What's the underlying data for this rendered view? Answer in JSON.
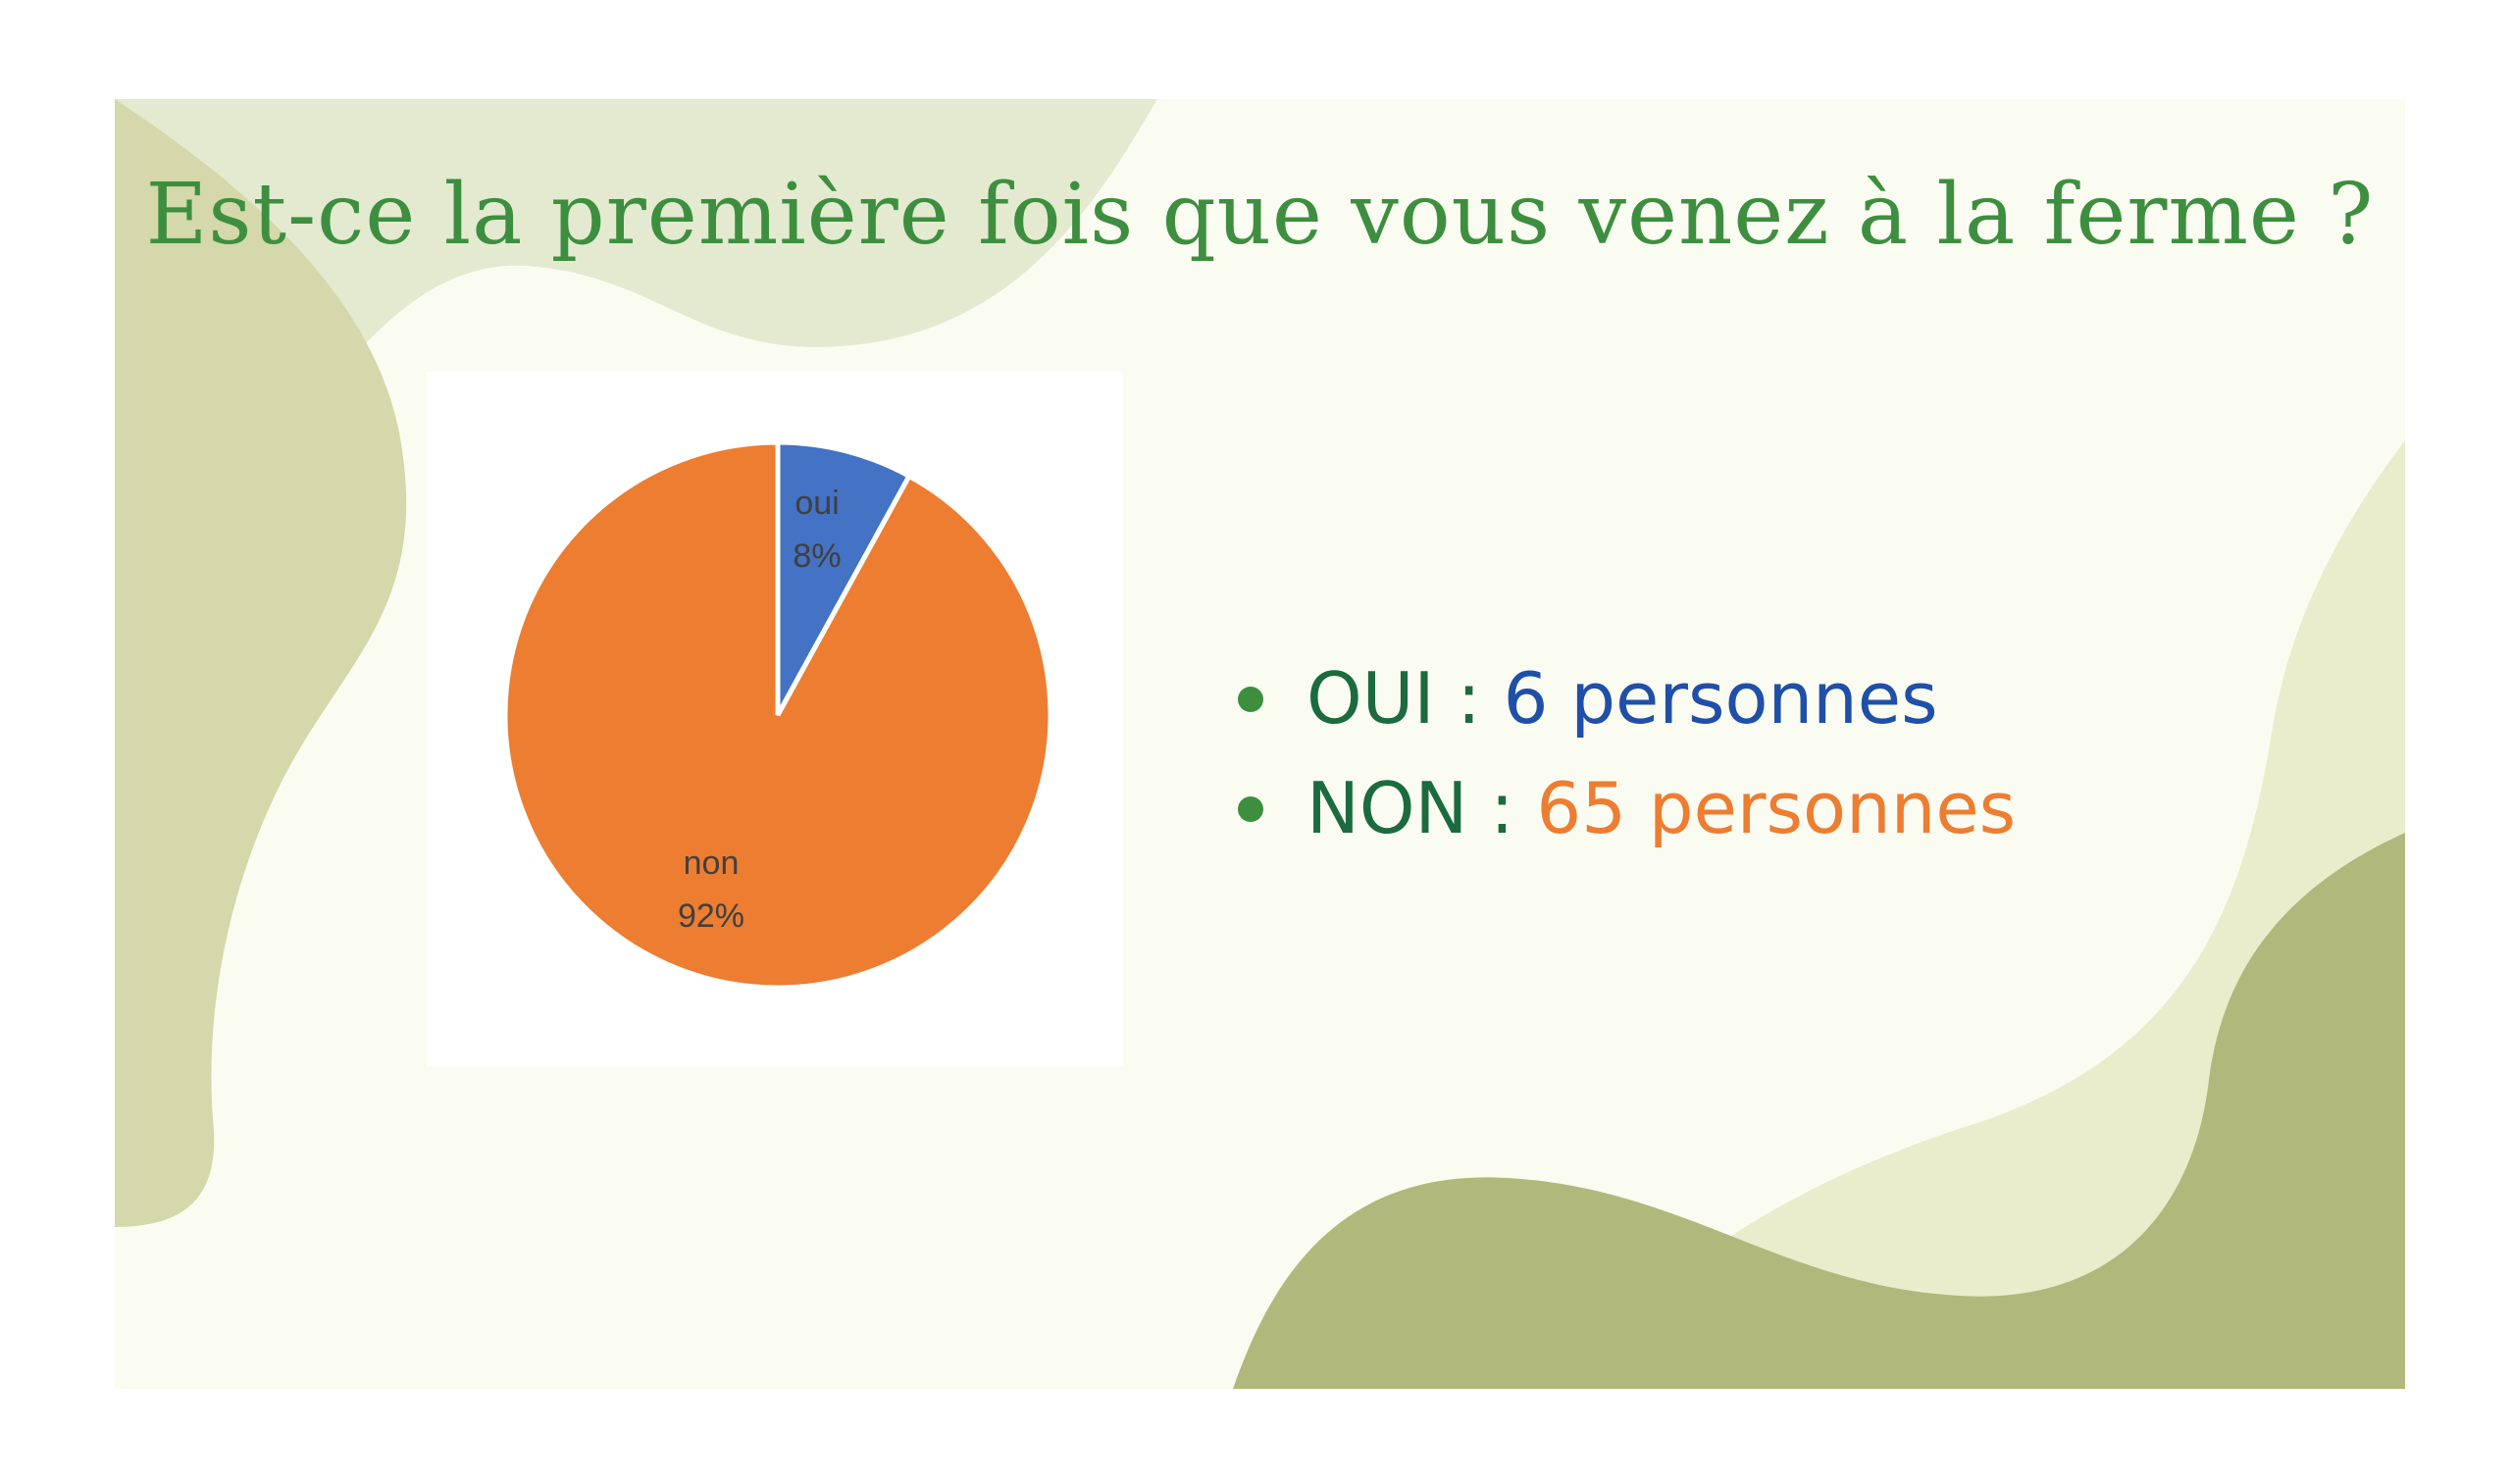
{
  "title": "Est-ce la première fois que vous venez à la ferme ?",
  "colors": {
    "title": "#3d8f3f",
    "oui": "#4472c4",
    "non": "#ed7d31",
    "label_dark_green": "#1b6b3f",
    "oui_text": "#1f4fa8",
    "non_text": "#ed7d31",
    "slide_bg": "#fbfcf1"
  },
  "chart_data": {
    "type": "pie",
    "categories": [
      "oui",
      "non"
    ],
    "values": [
      8,
      92
    ],
    "data_labels": [
      {
        "name": "oui",
        "percent": "8%"
      },
      {
        "name": "non",
        "percent": "92%"
      }
    ],
    "colors": [
      "#4472c4",
      "#ed7d31"
    ]
  },
  "summary": [
    {
      "label": "OUI : ",
      "value": "6 personnes",
      "color": "#1f4fa8"
    },
    {
      "label": "NON : ",
      "value": "65 personnes",
      "color": "#ed7d31"
    }
  ]
}
